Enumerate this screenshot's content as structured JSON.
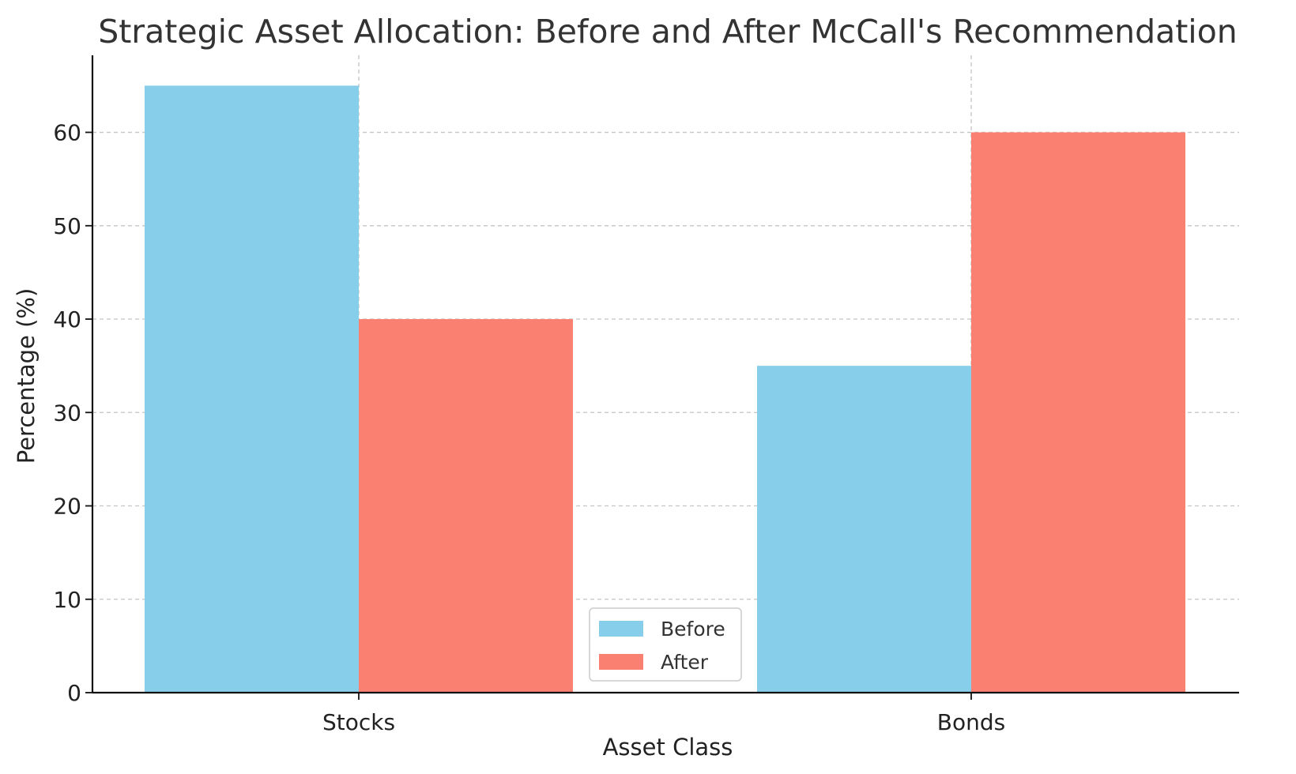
{
  "chart_data": {
    "type": "bar",
    "title": "Strategic Asset Allocation: Before and After McCall's Recommendation",
    "xlabel": "Asset Class",
    "ylabel": "Percentage (%)",
    "categories": [
      "Stocks",
      "Bonds"
    ],
    "series": [
      {
        "name": "Before",
        "values": [
          65,
          35
        ],
        "color": "#87CEEB"
      },
      {
        "name": "After",
        "values": [
          40,
          60
        ],
        "color": "#FA8072"
      }
    ],
    "ylim": [
      0,
      68.25
    ],
    "yticks": [
      0,
      10,
      20,
      30,
      40,
      50,
      60
    ],
    "grid": true,
    "legend_position": "bottom-center"
  }
}
